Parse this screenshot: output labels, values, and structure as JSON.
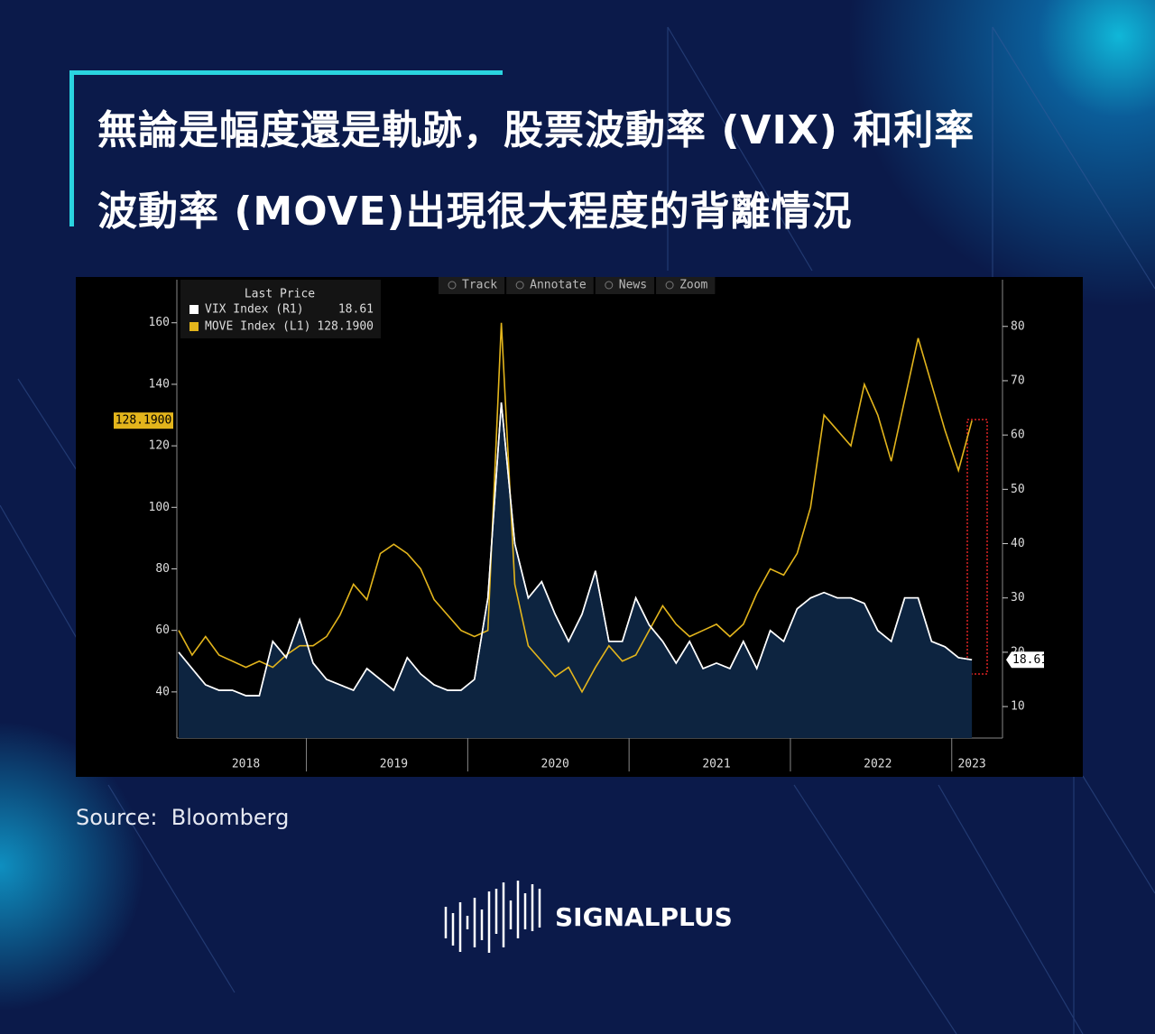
{
  "title_lines": [
    "無論是幅度還是軌跡，股票波動率 (VIX) 和利率",
    "波動率 (MOVE)出現很大程度的背離情況"
  ],
  "chart_data": {
    "type": "line",
    "toolbar": [
      "Track",
      "Annotate",
      "News",
      "Zoom"
    ],
    "legend_title": "Last Price",
    "categories": [
      null,
      null,
      null,
      null,
      null,
      "2018",
      null,
      null,
      null,
      null,
      null,
      null,
      null,
      null,
      null,
      null,
      "2019",
      null,
      null,
      null,
      null,
      null,
      null,
      null,
      null,
      null,
      null,
      null,
      "2020",
      null,
      null,
      null,
      null,
      null,
      null,
      null,
      null,
      null,
      null,
      null,
      "2021",
      null,
      null,
      null,
      null,
      null,
      null,
      null,
      null,
      null,
      null,
      null,
      "2022",
      null,
      null,
      null,
      null,
      null,
      null,
      "2023"
    ],
    "series": [
      {
        "name": "VIX Index (R1)",
        "color": "#ffffff",
        "axis": "y2",
        "last_price": 18.61,
        "values": [
          20,
          17,
          14,
          13,
          13,
          12,
          12,
          22,
          19,
          26,
          18,
          15,
          14,
          13,
          17,
          15,
          13,
          19,
          16,
          14,
          13,
          13,
          15,
          30,
          66,
          40,
          30,
          33,
          27,
          22,
          27,
          35,
          22,
          22,
          30,
          25,
          22,
          18,
          22,
          17,
          18,
          17,
          22,
          17,
          24,
          22,
          28,
          30,
          31,
          30,
          30,
          29,
          24,
          22,
          30,
          30,
          22,
          21,
          19,
          18.61
        ]
      },
      {
        "name": "MOVE Index (L1)",
        "color": "#e3b51c",
        "axis": "y",
        "last_price": 128.19,
        "last_price_label": "128.1900",
        "values": [
          60,
          52,
          58,
          52,
          50,
          48,
          50,
          48,
          52,
          55,
          55,
          58,
          65,
          75,
          70,
          85,
          88,
          85,
          80,
          70,
          65,
          60,
          58,
          60,
          160,
          75,
          55,
          50,
          45,
          48,
          40,
          48,
          55,
          50,
          52,
          60,
          68,
          62,
          58,
          60,
          62,
          58,
          62,
          72,
          80,
          78,
          85,
          100,
          130,
          125,
          120,
          140,
          130,
          115,
          135,
          155,
          140,
          125,
          112,
          128.19
        ]
      }
    ],
    "ylim": [
      25,
      174
    ],
    "yticks": [
      40,
      60,
      80,
      100,
      120,
      140,
      160
    ],
    "y2lim": [
      4.2,
      88.6
    ],
    "y2ticks": [
      10,
      20,
      30,
      40,
      50,
      60,
      70,
      80
    ]
  },
  "source": "Source:  Bloomberg",
  "brand": "SIGNALPLUS"
}
